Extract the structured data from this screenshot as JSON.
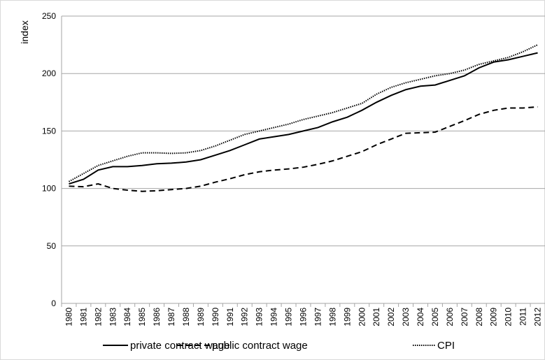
{
  "chart_data": {
    "type": "line",
    "y_label": "index",
    "categories": [
      "1980",
      "1981",
      "1982",
      "1983",
      "1984",
      "1985",
      "1986",
      "1987",
      "1988",
      "1989",
      "1990",
      "1991",
      "1992",
      "1993",
      "1994",
      "1995",
      "1996",
      "1997",
      "1998",
      "1999",
      "2000",
      "2001",
      "2002",
      "2003",
      "2004",
      "2005",
      "2006",
      "2007",
      "2008",
      "2009",
      "2010",
      "2011",
      "2012"
    ],
    "series": [
      {
        "name": "private contract wage",
        "color": "#000000",
        "dash": "solid",
        "values": [
          104,
          108,
          116,
          119,
          119,
          120,
          121.5,
          122,
          123,
          125,
          129,
          133,
          138,
          143,
          145,
          147,
          150,
          153,
          158,
          162,
          168,
          175,
          181,
          186,
          189,
          190,
          194,
          198,
          205,
          210,
          212,
          215,
          218
        ]
      },
      {
        "name": "public contract wage",
        "color": "#000000",
        "dash": "dashed",
        "values": [
          102,
          101.5,
          104,
          100,
          98.5,
          97.5,
          98,
          99,
          100,
          102,
          105.5,
          108.5,
          112,
          114.5,
          116,
          117,
          118.5,
          121,
          124,
          128,
          132,
          138,
          143,
          148,
          148.5,
          149,
          154,
          159,
          164.5,
          168,
          170,
          170,
          171
        ]
      },
      {
        "name": "CPI",
        "color": "#000000",
        "dash": "dotted",
        "values": [
          106,
          113,
          120,
          124,
          128,
          131,
          131,
          130.5,
          131,
          133,
          137,
          142,
          147,
          150,
          153,
          156,
          160,
          163,
          166,
          170,
          174,
          182,
          188,
          192,
          195,
          198,
          200,
          203,
          208,
          211,
          214,
          219,
          225
        ]
      }
    ],
    "ylim": [
      0,
      250
    ],
    "yticks": [
      0,
      50,
      100,
      150,
      200,
      250
    ],
    "grid": true,
    "legend": "bottom"
  }
}
